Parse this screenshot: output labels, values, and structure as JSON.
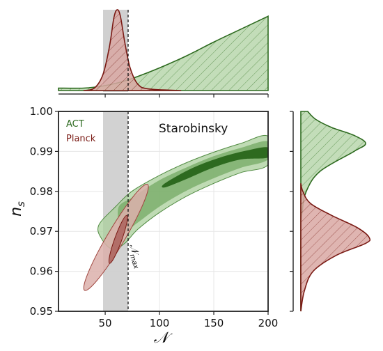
{
  "chart_data": {
    "type": "scatter",
    "title": "Starobinsky",
    "xlabel": "𝒩",
    "ylabel": "n",
    "ylabel_sub": "s",
    "xlim": [
      7,
      200
    ],
    "ylim": [
      0.95,
      1.0
    ],
    "x_ticks": [
      50,
      100,
      150,
      200
    ],
    "x_tick_labels": [
      "50",
      "100",
      "150",
      "200"
    ],
    "y_ticks": [
      0.95,
      0.96,
      0.97,
      0.98,
      0.99,
      1.0
    ],
    "y_tick_labels": [
      "0.95",
      "0.96",
      "0.97",
      "0.98",
      "0.99",
      "1.00"
    ],
    "grid": true,
    "legend": {
      "placement": "top-left"
    },
    "shaded_band": {
      "x": [
        50,
        73
      ]
    },
    "vline": {
      "x": 73,
      "label": "𝒩",
      "label_sub": "max"
    },
    "colors": {
      "act": "#2d6a1f",
      "act_light": "#a9cf9b",
      "planck": "#7a1a14",
      "planck_light": "#dcb0ac",
      "band": "#cccccc"
    },
    "series": [
      {
        "name": "ACT",
        "region_95_upper": [
          [
            44,
            0.9715
          ],
          [
            60,
            0.9763
          ],
          [
            75,
            0.9801
          ],
          [
            100,
            0.984
          ],
          [
            125,
            0.9872
          ],
          [
            150,
            0.9898
          ],
          [
            175,
            0.992
          ],
          [
            200,
            0.9938
          ]
        ],
        "region_95_lower": [
          [
            200,
            0.9867
          ],
          [
            175,
            0.9847
          ],
          [
            150,
            0.982
          ],
          [
            125,
            0.9788
          ],
          [
            100,
            0.9747
          ],
          [
            80,
            0.9705
          ],
          [
            68,
            0.967
          ],
          [
            57,
            0.9655
          ],
          [
            47,
            0.968
          ]
        ],
        "region_68_upper": [
          [
            62,
            0.9758
          ],
          [
            75,
            0.9785
          ],
          [
            100,
            0.9828
          ],
          [
            125,
            0.986
          ],
          [
            150,
            0.9888
          ],
          [
            175,
            0.9909
          ],
          [
            200,
            0.9925
          ]
        ],
        "region_68_lower": [
          [
            200,
            0.988
          ],
          [
            175,
            0.9859
          ],
          [
            150,
            0.9833
          ],
          [
            125,
            0.9802
          ],
          [
            100,
            0.9762
          ],
          [
            80,
            0.9722
          ],
          [
            66,
            0.9698
          ]
        ],
        "core": [
          [
            105,
            0.982
          ],
          [
            130,
            0.9858
          ],
          [
            155,
            0.9884
          ],
          [
            180,
            0.9902
          ],
          [
            200,
            0.991
          ],
          [
            200,
            0.9885
          ],
          [
            175,
            0.988
          ],
          [
            150,
            0.986
          ],
          [
            125,
            0.9831
          ],
          [
            105,
            0.981
          ]
        ],
        "marginal_x": [
          [
            7,
            0.03
          ],
          [
            30,
            0.03
          ],
          [
            45,
            0.05
          ],
          [
            60,
            0.09
          ],
          [
            75,
            0.15
          ],
          [
            100,
            0.28
          ],
          [
            125,
            0.43
          ],
          [
            150,
            0.6
          ],
          [
            175,
            0.76
          ],
          [
            200,
            0.92
          ]
        ],
        "marginal_y": [
          [
            0.95,
            0.0
          ],
          [
            0.97,
            0.0
          ],
          [
            0.975,
            0.02
          ],
          [
            0.98,
            0.08
          ],
          [
            0.985,
            0.28
          ],
          [
            0.99,
            0.78
          ],
          [
            0.992,
            0.95
          ],
          [
            0.994,
            0.78
          ],
          [
            0.996,
            0.45
          ],
          [
            0.998,
            0.22
          ],
          [
            1.0,
            0.1
          ]
        ]
      },
      {
        "name": "Planck",
        "ellipse_95": {
          "center": [
            60,
            0.9685
          ],
          "x_half_range": [
            34,
            92
          ],
          "n_s_range": [
            0.955,
            0.9815
          ]
        },
        "ellipse_68": {
          "center": [
            62,
            0.968
          ],
          "x_half_range": [
            55,
            71
          ],
          "n_s_range": [
            0.962,
            0.974
          ]
        },
        "marginal_x": [
          [
            30,
            0.0
          ],
          [
            40,
            0.03
          ],
          [
            48,
            0.2
          ],
          [
            54,
            0.55
          ],
          [
            58,
            0.9
          ],
          [
            61,
            1.0
          ],
          [
            64,
            0.92
          ],
          [
            68,
            0.6
          ],
          [
            73,
            0.28
          ],
          [
            80,
            0.08
          ],
          [
            90,
            0.02
          ],
          [
            120,
            0.0
          ]
        ],
        "marginal_y": [
          [
            0.95,
            0.0
          ],
          [
            0.955,
            0.05
          ],
          [
            0.96,
            0.18
          ],
          [
            0.964,
            0.52
          ],
          [
            0.967,
            0.95
          ],
          [
            0.9685,
            1.0
          ],
          [
            0.971,
            0.82
          ],
          [
            0.974,
            0.45
          ],
          [
            0.977,
            0.14
          ],
          [
            0.98,
            0.03
          ],
          [
            0.982,
            0.0
          ]
        ]
      }
    ]
  }
}
